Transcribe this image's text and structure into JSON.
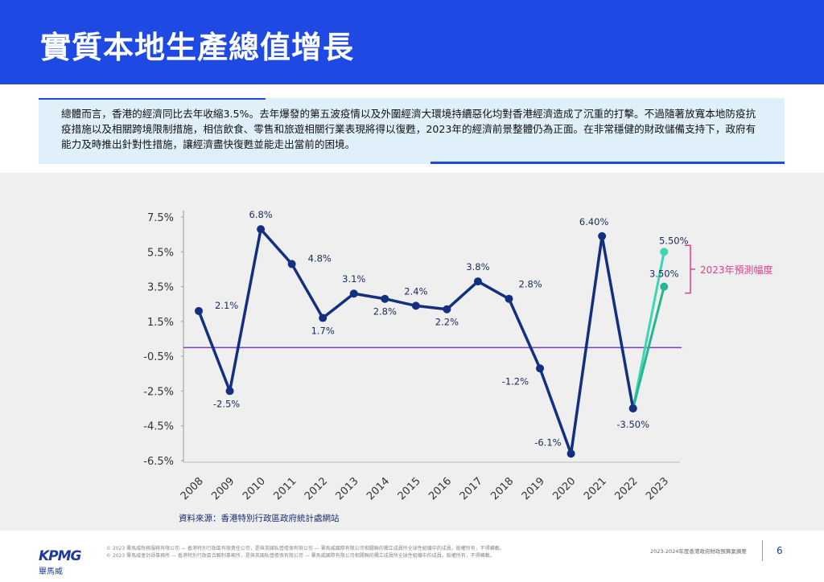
{
  "header": {
    "title": "實質本地生產總值增長"
  },
  "intro": "總體而言，香港的經濟同比去年收縮3.5%。去年爆發的第五波疫情以及外圍經濟大環境持續惡化均對香港經濟造成了沉重的打擊。不過隨著放寬本地防疫抗疫措施以及相關跨境限制措施，相信飲食、零售和旅遊相關行業表現將得以復甦，2023年的經濟前景整體仍為正面。在非常穩健的財政儲備支持下，政府有能力及時推出針對性措施，讓經濟盡快復甦並能走出當前的困境。",
  "chart_data": {
    "type": "line",
    "categories": [
      "2008",
      "2009",
      "2010",
      "2011",
      "2012",
      "2013",
      "2014",
      "2015",
      "2016",
      "2017",
      "2018",
      "2019",
      "2020",
      "2021",
      "2022",
      "2023"
    ],
    "series": [
      {
        "color": "#3dd6b5",
        "values": [
          null,
          null,
          null,
          null,
          null,
          null,
          null,
          null,
          null,
          null,
          null,
          null,
          null,
          null,
          -3.5,
          5.5
        ],
        "value_labels": [
          null,
          null,
          null,
          null,
          null,
          null,
          null,
          null,
          null,
          null,
          null,
          null,
          null,
          null,
          null,
          "5.50%"
        ]
      },
      {
        "color": "#27b592",
        "values": [
          null,
          null,
          null,
          null,
          null,
          null,
          null,
          null,
          null,
          null,
          null,
          null,
          null,
          null,
          -3.5,
          3.5
        ],
        "value_labels": [
          null,
          null,
          null,
          null,
          null,
          null,
          null,
          null,
          null,
          null,
          null,
          null,
          null,
          null,
          null,
          "3.50%"
        ]
      },
      {
        "color": "#12307f",
        "values": [
          2.1,
          -2.5,
          6.8,
          4.8,
          1.7,
          3.1,
          2.8,
          2.4,
          2.2,
          3.8,
          2.8,
          -1.2,
          -6.1,
          6.4,
          -3.5,
          null
        ],
        "value_labels": [
          "2.1%",
          "-2.5%",
          "6.8%",
          "4.8%",
          "1.7%",
          "3.1%",
          "2.8%",
          "2.4%",
          "2.2%",
          "3.8%",
          "2.8%",
          "-1.2%",
          "-6.1%",
          "6.40%",
          "-3.50%",
          null
        ]
      }
    ],
    "ylim": [
      -6.5,
      7.5
    ],
    "yticks": [
      {
        "value": 7.5,
        "label": "7.5%"
      },
      {
        "value": 5.5,
        "label": "5.5%"
      },
      {
        "value": 3.5,
        "label": "3.5%"
      },
      {
        "value": 1.5,
        "label": "1.5%"
      },
      {
        "value": -0.5,
        "label": "-0.5%"
      },
      {
        "value": -2.5,
        "label": "-2.5%"
      },
      {
        "value": -4.5,
        "label": "-4.5%"
      },
      {
        "value": -6.5,
        "label": "-6.5%"
      }
    ],
    "reference_line": {
      "value": 0,
      "color": "#7a3fc4"
    },
    "annotation": {
      "text": "2023年預測幅度",
      "color": "#e0408a"
    },
    "source": "資料來源：香港特別行政區政府統計處網站"
  },
  "footer": {
    "logo": "KPMG",
    "logo_cn": "畢馬威",
    "legal": [
      "© 2023 畢馬威稅務服務有限公司 — 香港特別行政區有限責任公司，是與英國私營擔保有限公司 — 畢馬威國際有限公司相關聯的獨立成員所全球性組織中的成員。版權所有，不得轉載。",
      "© 2023 畢馬威會計師事務所 — 香港特別行政區合夥制事務所，是與英國私營擔保有限公司 — 畢馬威國際有限公司相關聯的獨立成員所全球性組織中的成員。版權所有，不得轉載。"
    ],
    "booklet": "2023-2024年度香港政府財政預算案摘要",
    "page": "6"
  }
}
